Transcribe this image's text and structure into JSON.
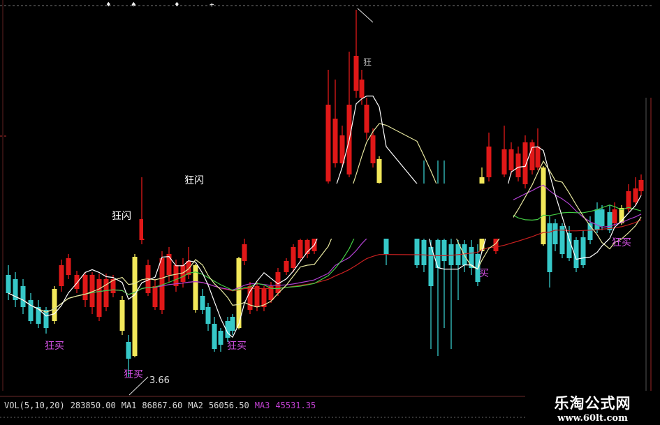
{
  "chart_data": {
    "type": "candlestick",
    "title": "",
    "grid": false,
    "colors": {
      "up": "#e01818",
      "down": "#36c8c8",
      "signal": "#f2e85a",
      "ma5": "#ffffff",
      "ma10": "#e8e8a0",
      "ma20": "#44cc44",
      "ma30": "#b040d0",
      "ma60": "#c82020"
    },
    "ohlc": [
      [
        4.39,
        4.46,
        4.21,
        4.26,
        "d"
      ],
      [
        4.36,
        4.41,
        4.16,
        4.21,
        "d"
      ],
      [
        4.31,
        4.36,
        4.11,
        4.16,
        "d"
      ],
      [
        4.21,
        4.26,
        4.04,
        4.06,
        "d"
      ],
      [
        4.16,
        4.21,
        4.01,
        4.04,
        "d"
      ],
      [
        4.14,
        4.16,
        3.97,
        4.01,
        "d"
      ],
      [
        4.06,
        4.31,
        4.04,
        4.29,
        "s"
      ],
      [
        4.31,
        4.5,
        4.27,
        4.46,
        "u"
      ],
      [
        4.39,
        4.54,
        4.36,
        4.51,
        "u"
      ],
      [
        4.29,
        4.42,
        4.26,
        4.39,
        "u"
      ],
      [
        4.21,
        4.41,
        4.16,
        4.39,
        "u"
      ],
      [
        4.16,
        4.41,
        4.11,
        4.39,
        "u"
      ],
      [
        4.09,
        4.4,
        4.06,
        4.36,
        "u"
      ],
      [
        4.16,
        4.4,
        4.13,
        4.36,
        "u"
      ],
      [
        4.26,
        4.39,
        4.23,
        4.36,
        "u"
      ],
      [
        3.99,
        4.24,
        3.96,
        4.21,
        "s"
      ],
      [
        3.91,
        3.96,
        3.66,
        3.79,
        "d"
      ],
      [
        3.81,
        4.54,
        3.8,
        4.52,
        "s"
      ],
      [
        4.64,
        5.09,
        4.61,
        4.79,
        "u"
      ],
      [
        4.26,
        4.5,
        4.24,
        4.46,
        "u"
      ],
      [
        4.16,
        4.36,
        4.14,
        4.31,
        "u"
      ],
      [
        4.14,
        4.56,
        4.11,
        4.51,
        "u"
      ],
      [
        4.39,
        4.59,
        4.34,
        4.54,
        "u"
      ],
      [
        4.31,
        4.5,
        4.27,
        4.46,
        "u"
      ],
      [
        4.34,
        4.51,
        4.3,
        4.46,
        "u"
      ],
      [
        4.39,
        4.59,
        4.36,
        4.49,
        "u"
      ],
      [
        4.14,
        4.47,
        4.12,
        4.46,
        "s"
      ],
      [
        4.24,
        4.29,
        4.11,
        4.14,
        "d"
      ],
      [
        4.16,
        4.19,
        3.99,
        4.04,
        "d"
      ],
      [
        4.04,
        4.09,
        3.84,
        3.86,
        "d"
      ],
      [
        3.99,
        4.01,
        3.84,
        3.89,
        "d"
      ],
      [
        4.06,
        4.09,
        3.91,
        3.94,
        "d"
      ],
      [
        4.09,
        4.11,
        3.96,
        3.99,
        "d"
      ],
      [
        4.01,
        4.52,
        4.0,
        4.51,
        "s"
      ],
      [
        4.49,
        4.66,
        4.46,
        4.61,
        "u"
      ],
      [
        4.14,
        4.34,
        4.11,
        4.31,
        "u"
      ],
      [
        4.16,
        4.34,
        4.13,
        4.31,
        "u"
      ],
      [
        4.16,
        4.31,
        4.13,
        4.29,
        "u"
      ],
      [
        4.21,
        4.34,
        4.19,
        4.31,
        "u"
      ],
      [
        4.26,
        4.44,
        4.24,
        4.41,
        "u"
      ],
      [
        4.41,
        4.51,
        4.39,
        4.49,
        "u"
      ],
      [
        4.44,
        4.61,
        4.41,
        4.59,
        "u"
      ],
      [
        4.51,
        4.66,
        4.49,
        4.64,
        "u"
      ],
      [
        4.54,
        4.66,
        4.51,
        4.64,
        "u"
      ],
      [
        4.56,
        4.71,
        4.54,
        4.66,
        "u"
      ],
      [
        5.06,
        5.86,
        5.04,
        5.61,
        "u"
      ],
      [
        5.19,
        5.79,
        5.16,
        5.51,
        "u"
      ],
      [
        5.19,
        5.46,
        5.16,
        5.39,
        "u"
      ],
      [
        5.11,
        5.99,
        5.09,
        5.61,
        "u"
      ],
      [
        5.71,
        6.29,
        5.66,
        5.96,
        "u"
      ],
      [
        5.66,
        5.86,
        5.61,
        5.79,
        "u"
      ],
      [
        5.41,
        5.66,
        5.36,
        5.61,
        "u"
      ],
      [
        5.19,
        5.44,
        5.16,
        5.39,
        "u"
      ],
      [
        5.05,
        5.24,
        5.04,
        5.22,
        "s"
      ],
      [
        4.66,
        4.69,
        4.46,
        4.54,
        "d"
      ],
      [
        4.66,
        4.71,
        4.44,
        4.46,
        "d"
      ],
      [
        4.64,
        5.21,
        4.41,
        4.46,
        "d"
      ],
      [
        4.59,
        4.64,
        3.86,
        4.31,
        "d"
      ],
      [
        4.64,
        5.21,
        3.81,
        4.44,
        "d"
      ],
      [
        4.64,
        5.21,
        4.01,
        4.49,
        "d"
      ],
      [
        4.61,
        4.66,
        3.86,
        4.46,
        "d"
      ],
      [
        4.61,
        4.64,
        4.21,
        4.46,
        "d"
      ],
      [
        4.61,
        4.64,
        4.41,
        4.46,
        "d"
      ],
      [
        4.59,
        4.64,
        4.39,
        4.44,
        "d"
      ],
      [
        4.54,
        4.61,
        4.31,
        4.34,
        "d"
      ],
      [
        4.56,
        5.16,
        4.55,
        5.09,
        "s"
      ],
      [
        5.09,
        5.41,
        5.06,
        5.31,
        "u"
      ],
      [
        4.56,
        4.69,
        4.54,
        4.66,
        "u"
      ],
      [
        5.11,
        5.46,
        5.09,
        5.29,
        "u"
      ],
      [
        5.14,
        5.34,
        5.11,
        5.29,
        "u"
      ],
      [
        5.09,
        5.31,
        5.06,
        5.26,
        "u"
      ],
      [
        5.04,
        5.39,
        5.01,
        5.34,
        "u"
      ],
      [
        5.14,
        5.36,
        5.11,
        5.34,
        "u"
      ],
      [
        5.16,
        5.44,
        5.14,
        5.31,
        "u"
      ],
      [
        4.61,
        5.17,
        4.6,
        5.16,
        "s"
      ],
      [
        4.76,
        4.81,
        4.3,
        4.41,
        "d"
      ],
      [
        4.76,
        4.79,
        4.56,
        4.61,
        "d"
      ],
      [
        4.74,
        4.76,
        4.51,
        4.54,
        "d"
      ],
      [
        4.69,
        4.74,
        4.49,
        4.51,
        "d"
      ],
      [
        4.64,
        4.66,
        4.41,
        4.44,
        "d"
      ],
      [
        4.66,
        4.71,
        4.44,
        4.46,
        "d"
      ],
      [
        4.76,
        4.81,
        4.61,
        4.64,
        "d"
      ],
      [
        4.86,
        4.91,
        4.69,
        4.71,
        "d"
      ],
      [
        4.86,
        4.89,
        4.71,
        4.74,
        "d"
      ],
      [
        4.84,
        4.89,
        4.69,
        4.71,
        "d"
      ],
      [
        4.76,
        4.91,
        4.74,
        4.86,
        "u"
      ],
      [
        4.76,
        4.89,
        4.75,
        4.87,
        "s"
      ],
      [
        4.86,
        5.04,
        4.84,
        4.99,
        "u"
      ],
      [
        4.91,
        5.09,
        4.89,
        5.01,
        "u"
      ],
      [
        4.99,
        5.11,
        4.96,
        5.07,
        "u"
      ]
    ],
    "ma_periods": [
      5,
      10,
      20,
      30,
      60
    ],
    "low_annotation": "3.66",
    "signals": {
      "flash": "狂闪",
      "flash_top": "狂闪",
      "buy1": "狂买",
      "buy2": "狂买",
      "buy3": "狂买",
      "buy4": "买",
      "buy5": "狂买",
      "partial": "狂"
    }
  },
  "legend": {
    "name": "VOL(5,10,20)",
    "vol": "283850.00",
    "ma1_label": "MA1",
    "ma1_value": "86867.60",
    "ma2_label": "MA2",
    "ma2_value": "56056.50",
    "ma3_label": "MA3",
    "ma3_value": "45531.35",
    "ma3_color": "#c040d0"
  },
  "watermark": {
    "title": "乐淘公式网",
    "url": "www.60lt.com"
  }
}
